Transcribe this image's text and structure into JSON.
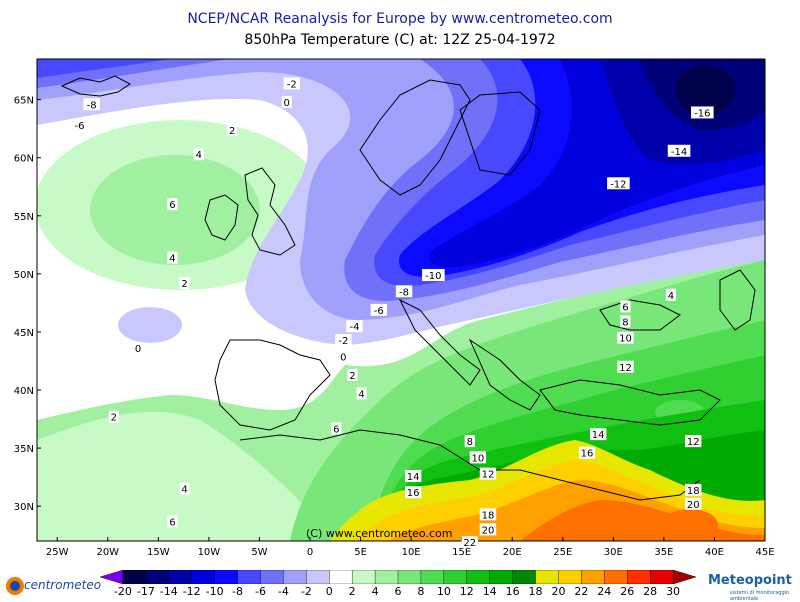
{
  "header": {
    "title": "NCEP/NCAR Reanalysis for Europe by www.centrometeo.com",
    "subtitle": "850hPa Temperature (C) at: 12Z 25-04-1972"
  },
  "map": {
    "lat_labels": [
      "65N",
      "60N",
      "55N",
      "50N",
      "45N",
      "40N",
      "35N",
      "30N"
    ],
    "lon_labels": [
      "25W",
      "20W",
      "15W",
      "10W",
      "5W",
      "0",
      "5E",
      "10E",
      "15E",
      "20E",
      "25E",
      "30E",
      "35E",
      "40E",
      "45E"
    ],
    "watermark": "(C) www.centrometeo.com",
    "contour_labels": [
      {
        "text": "-8",
        "lon": -21.6,
        "lat": 64.6
      },
      {
        "text": "-6",
        "lon": -22.8,
        "lat": 62.8
      },
      {
        "text": "-2",
        "lon": -1.8,
        "lat": 66.4
      },
      {
        "text": "0",
        "lon": -2.3,
        "lat": 64.8
      },
      {
        "text": "2",
        "lon": -7.7,
        "lat": 62.4
      },
      {
        "text": "4",
        "lon": -11.0,
        "lat": 60.3
      },
      {
        "text": "6",
        "lon": -13.6,
        "lat": 56.0
      },
      {
        "text": "4",
        "lon": -13.6,
        "lat": 51.4
      },
      {
        "text": "2",
        "lon": -12.4,
        "lat": 49.2
      },
      {
        "text": "0",
        "lon": -17.0,
        "lat": 43.6
      },
      {
        "text": "2",
        "lon": -19.4,
        "lat": 37.7
      },
      {
        "text": "4",
        "lon": -12.4,
        "lat": 31.5
      },
      {
        "text": "6",
        "lon": -13.6,
        "lat": 28.7
      },
      {
        "text": "-16",
        "lon": 38.8,
        "lat": 63.9
      },
      {
        "text": "-14",
        "lon": 36.5,
        "lat": 60.6
      },
      {
        "text": "-12",
        "lon": 30.5,
        "lat": 57.8
      },
      {
        "text": "-10",
        "lon": 12.2,
        "lat": 49.9
      },
      {
        "text": "-8",
        "lon": 9.3,
        "lat": 48.5
      },
      {
        "text": "-6",
        "lon": 6.8,
        "lat": 46.9
      },
      {
        "text": "-4",
        "lon": 4.4,
        "lat": 45.5
      },
      {
        "text": "-2",
        "lon": 3.3,
        "lat": 44.3
      },
      {
        "text": "0",
        "lon": 3.3,
        "lat": 42.9
      },
      {
        "text": "2",
        "lon": 4.2,
        "lat": 41.3
      },
      {
        "text": "4",
        "lon": 5.1,
        "lat": 39.7
      },
      {
        "text": "6",
        "lon": 2.6,
        "lat": 36.7
      },
      {
        "text": "8",
        "lon": 15.8,
        "lat": 35.6
      },
      {
        "text": "10",
        "lon": 16.6,
        "lat": 34.2
      },
      {
        "text": "12",
        "lon": 17.6,
        "lat": 32.8
      },
      {
        "text": "14",
        "lon": 10.2,
        "lat": 32.6
      },
      {
        "text": "16",
        "lon": 10.2,
        "lat": 31.2
      },
      {
        "text": "18",
        "lon": 17.6,
        "lat": 29.3
      },
      {
        "text": "20",
        "lon": 17.6,
        "lat": 28.0
      },
      {
        "text": "22",
        "lon": 15.8,
        "lat": 26.9
      },
      {
        "text": "6",
        "lon": 31.2,
        "lat": 47.2
      },
      {
        "text": "8",
        "lon": 31.2,
        "lat": 45.9
      },
      {
        "text": "10",
        "lon": 31.2,
        "lat": 44.5
      },
      {
        "text": "12",
        "lon": 31.2,
        "lat": 42.0
      },
      {
        "text": "4",
        "lon": 35.7,
        "lat": 48.2
      },
      {
        "text": "14",
        "lon": 28.5,
        "lat": 36.2
      },
      {
        "text": "16",
        "lon": 27.4,
        "lat": 34.6
      },
      {
        "text": "12",
        "lon": 37.9,
        "lat": 35.6
      },
      {
        "text": "18",
        "lon": 37.9,
        "lat": 31.4
      },
      {
        "text": "20",
        "lon": 37.9,
        "lat": 30.2
      }
    ]
  },
  "legend": {
    "labels": [
      "-20",
      "-17",
      "-14",
      "-12",
      "-10",
      "-8",
      "-6",
      "-4",
      "-2",
      "0",
      "2",
      "4",
      "6",
      "8",
      "10",
      "12",
      "14",
      "16",
      "18",
      "20",
      "22",
      "24",
      "26",
      "28",
      "30"
    ],
    "colors": [
      "#7700ee",
      "#00004a",
      "#000078",
      "#0000aa",
      "#0000dd",
      "#0a0aff",
      "#4848ff",
      "#7070f8",
      "#a0a0fa",
      "#c8c8fc",
      "#ffffff",
      "#c8fac8",
      "#a0f0a0",
      "#78e678",
      "#50dc50",
      "#30d030",
      "#10c010",
      "#00aa00",
      "#008800",
      "#e6e600",
      "#ffd000",
      "#ffa000",
      "#ff7000",
      "#ff3000",
      "#e60000",
      "#a00000"
    ],
    "logo_left": "centrometeo",
    "logo_right": "Meteopoint",
    "logo_right_sub": "sistemi di monitoraggio ambientale"
  }
}
